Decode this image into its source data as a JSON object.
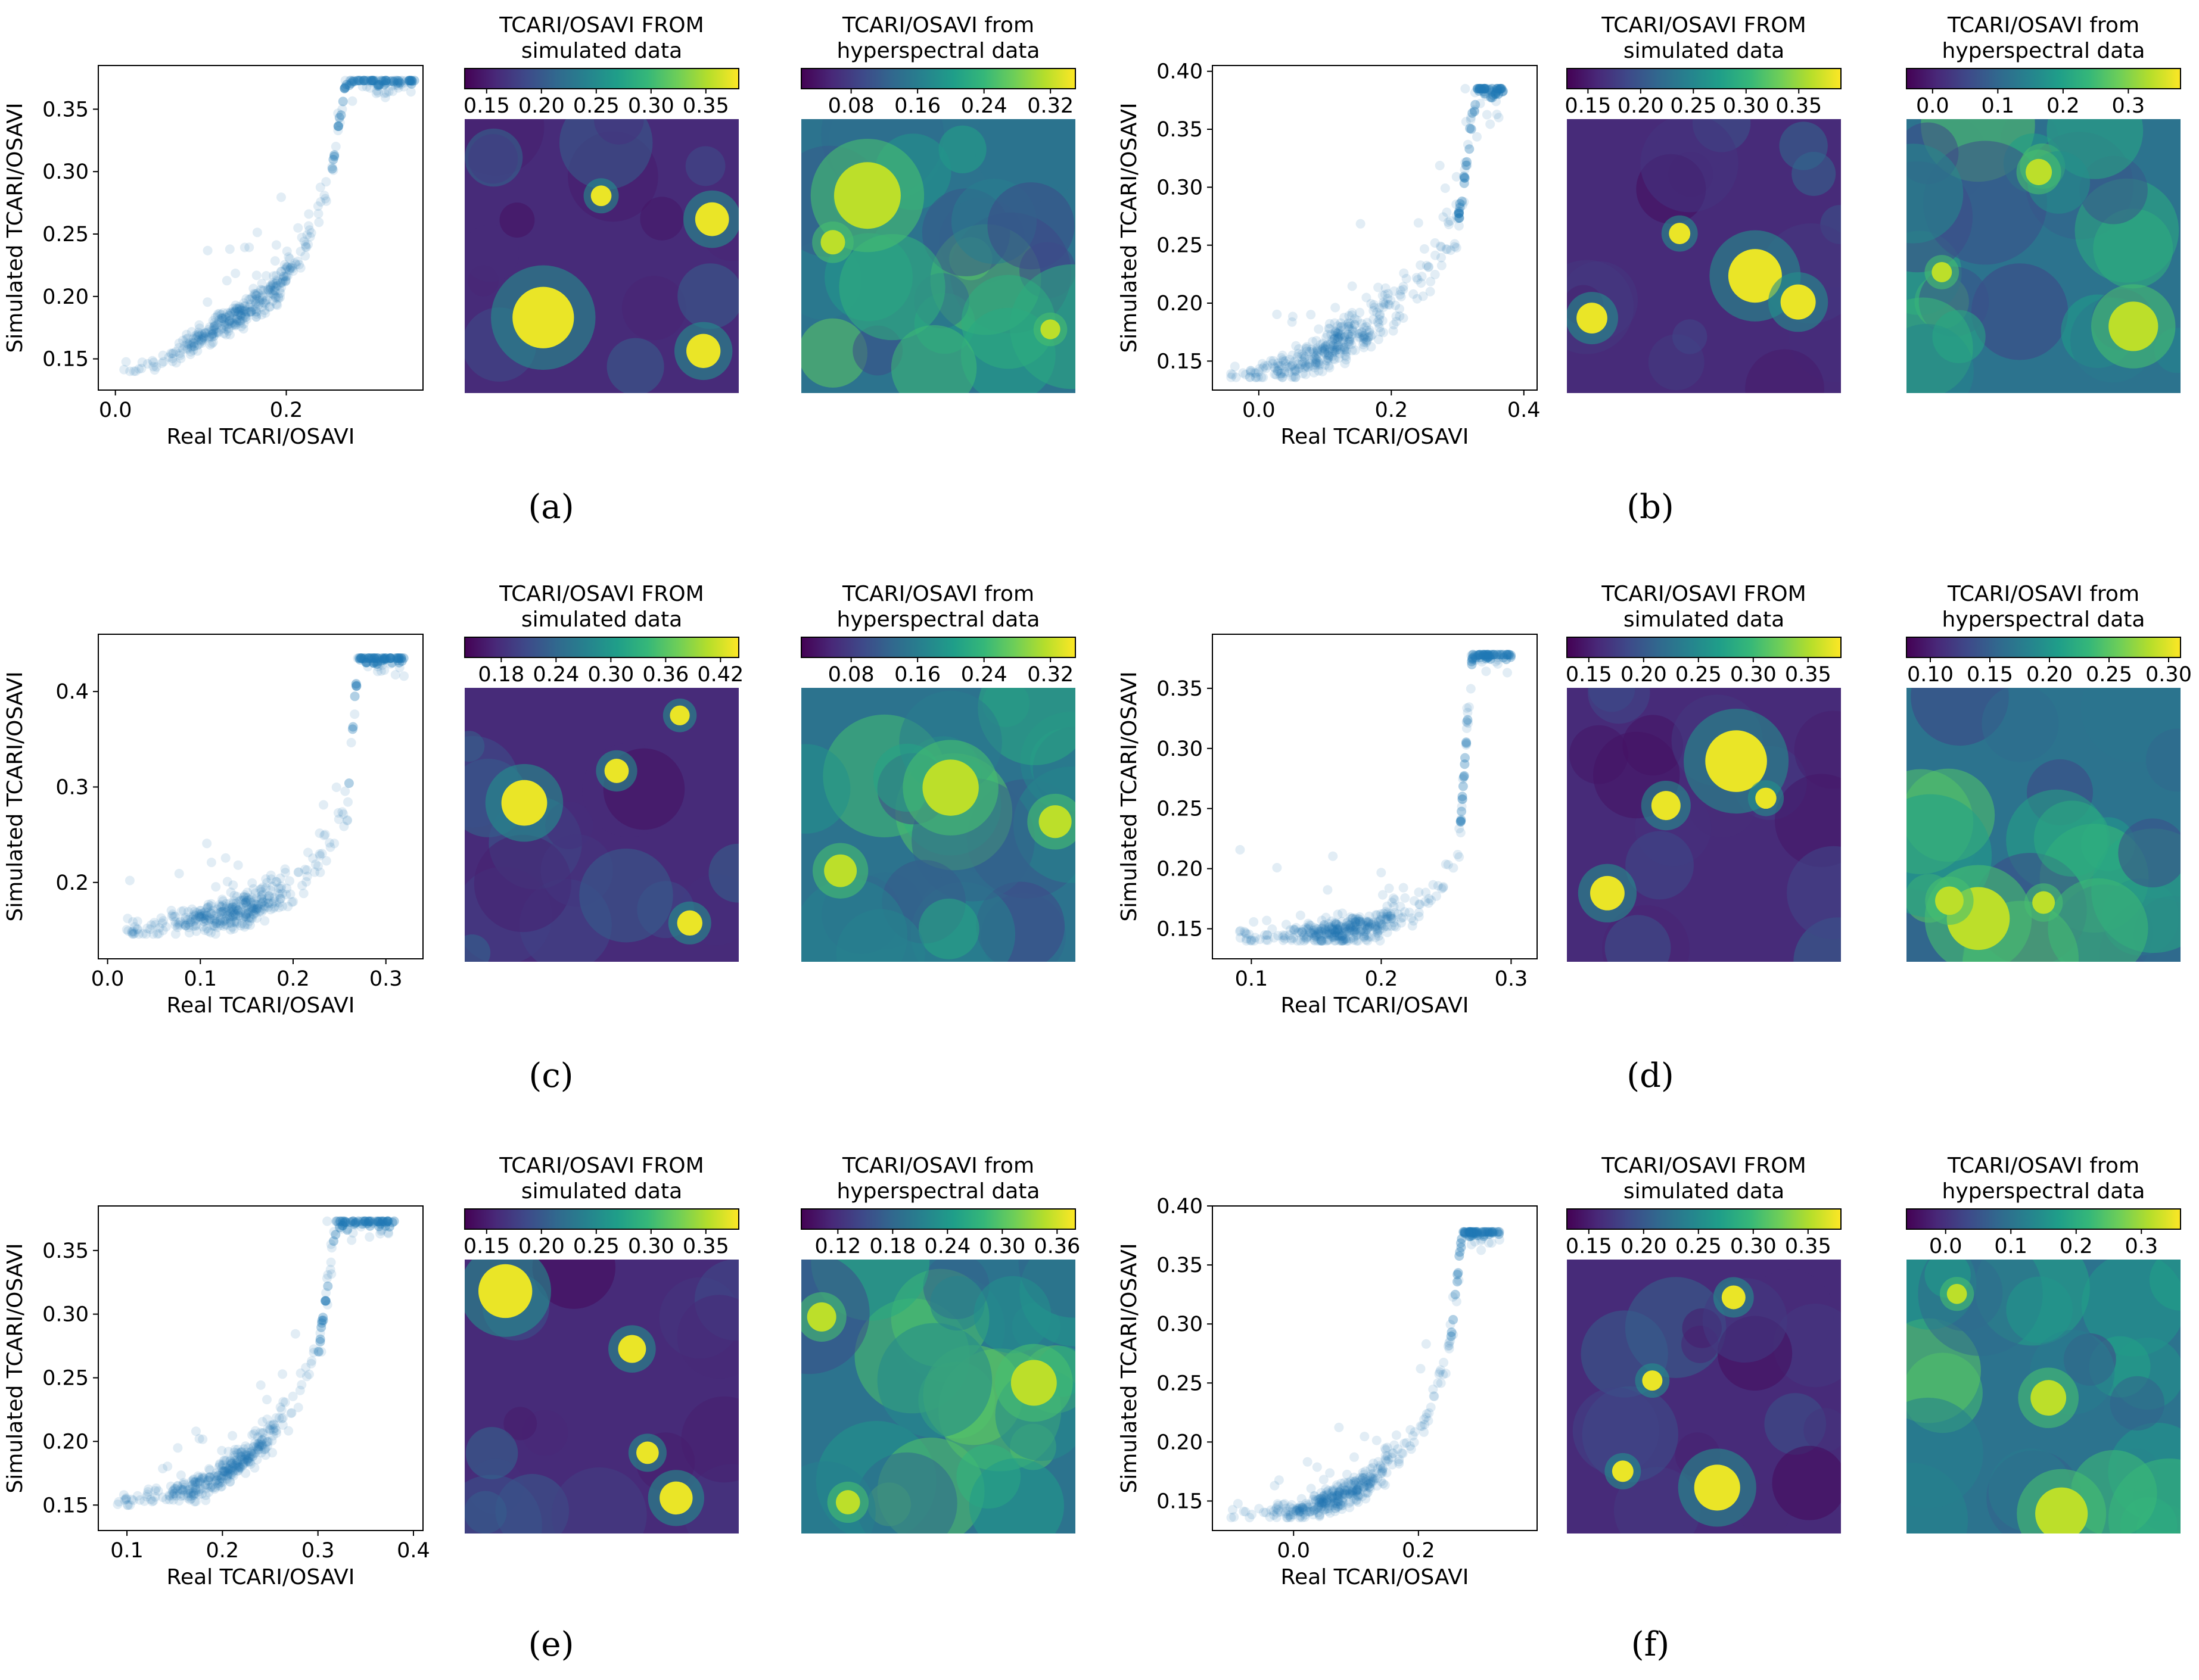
{
  "chart_data": [
    {
      "panel": "a",
      "caption": "(a)",
      "scatter": {
        "type": "scatter",
        "xlabel": "Real TCARI/OSAVI",
        "ylabel": "Simulated TCARI/OSAVI",
        "xlim": [
          -0.02,
          0.36
        ],
        "ylim": [
          0.125,
          0.385
        ],
        "xticks": [
          "0.0",
          "0.2"
        ],
        "xtick_values": [
          0.0,
          0.2
        ],
        "yticks": [
          "0.15",
          "0.20",
          "0.25",
          "0.30",
          "0.35"
        ],
        "ytick_values": [
          0.15,
          0.2,
          0.25,
          0.3,
          0.35
        ],
        "trend": {
          "x": [
            0.01,
            0.06,
            0.12,
            0.18,
            0.22,
            0.25,
            0.27,
            0.35
          ],
          "y": [
            0.138,
            0.15,
            0.175,
            0.2,
            0.235,
            0.29,
            0.373,
            0.373
          ]
        },
        "spread": 0.012,
        "points": 420,
        "seed": 11,
        "color": "#1f77b4"
      },
      "map_simulated": {
        "type": "heatmap",
        "title": [
          "TCARI/OSAVI FROM",
          "simulated data"
        ],
        "colorbar_ticks": [
          "0.15",
          "0.20",
          "0.25",
          "0.30",
          "0.35"
        ],
        "colorbar_tick_values": [
          0.15,
          0.2,
          0.25,
          0.3,
          0.35
        ],
        "colorbar_range": [
          0.13,
          0.38
        ],
        "seed": 101
      },
      "map_hyperspectral": {
        "type": "heatmap",
        "title": [
          "TCARI/OSAVI from",
          "hyperspectral data"
        ],
        "colorbar_ticks": [
          "0.08",
          "0.16",
          "0.24",
          "0.32"
        ],
        "colorbar_tick_values": [
          0.08,
          0.16,
          0.24,
          0.32
        ],
        "colorbar_range": [
          0.02,
          0.35
        ],
        "seed": 102
      }
    },
    {
      "panel": "b",
      "caption": "(b)",
      "scatter": {
        "type": "scatter",
        "xlabel": "Real TCARI/OSAVI",
        "ylabel": "Simulated TCARI/OSAVI",
        "xlim": [
          -0.07,
          0.42
        ],
        "ylim": [
          0.125,
          0.405
        ],
        "xticks": [
          "0.0",
          "0.2",
          "0.4"
        ],
        "xtick_values": [
          0.0,
          0.2,
          0.4
        ],
        "yticks": [
          "0.15",
          "0.20",
          "0.25",
          "0.30",
          "0.35",
          "0.40"
        ],
        "ytick_values": [
          0.15,
          0.2,
          0.25,
          0.3,
          0.35,
          0.4
        ],
        "trend": {
          "x": [
            -0.05,
            0.05,
            0.12,
            0.2,
            0.26,
            0.3,
            0.33,
            0.37
          ],
          "y": [
            0.138,
            0.145,
            0.165,
            0.195,
            0.23,
            0.27,
            0.385,
            0.385
          ]
        },
        "spread": 0.02,
        "points": 420,
        "seed": 12,
        "color": "#1f77b4"
      },
      "map_simulated": {
        "type": "heatmap",
        "title": [
          "TCARI/OSAVI FROM",
          "simulated data"
        ],
        "colorbar_ticks": [
          "0.15",
          "0.20",
          "0.25",
          "0.30",
          "0.35"
        ],
        "colorbar_tick_values": [
          0.15,
          0.2,
          0.25,
          0.3,
          0.35
        ],
        "colorbar_range": [
          0.13,
          0.39
        ],
        "seed": 201
      },
      "map_hyperspectral": {
        "type": "heatmap",
        "title": [
          "TCARI/OSAVI from",
          "hyperspectral data"
        ],
        "colorbar_ticks": [
          "0.0",
          "0.1",
          "0.2",
          "0.3"
        ],
        "colorbar_tick_values": [
          0.0,
          0.1,
          0.2,
          0.3
        ],
        "colorbar_range": [
          -0.04,
          0.38
        ],
        "seed": 202
      }
    },
    {
      "panel": "c",
      "caption": "(c)",
      "scatter": {
        "type": "scatter",
        "xlabel": "Real TCARI/OSAVI",
        "ylabel": "Simulated TCARI/OSAVI",
        "xlim": [
          -0.01,
          0.34
        ],
        "ylim": [
          0.12,
          0.46
        ],
        "xticks": [
          "0.0",
          "0.1",
          "0.2",
          "0.3"
        ],
        "xtick_values": [
          0.0,
          0.1,
          0.2,
          0.3
        ],
        "yticks": [
          "0.2",
          "0.3",
          "0.4"
        ],
        "ytick_values": [
          0.2,
          0.3,
          0.4
        ],
        "trend": {
          "x": [
            0.02,
            0.08,
            0.15,
            0.2,
            0.24,
            0.26,
            0.27,
            0.32
          ],
          "y": [
            0.148,
            0.158,
            0.17,
            0.195,
            0.24,
            0.3,
            0.435,
            0.435
          ]
        },
        "spread": 0.02,
        "points": 420,
        "seed": 13,
        "color": "#1f77b4"
      },
      "map_simulated": {
        "type": "heatmap",
        "title": [
          "TCARI/OSAVI FROM",
          "simulated data"
        ],
        "colorbar_ticks": [
          "0.18",
          "0.24",
          "0.30",
          "0.36",
          "0.42"
        ],
        "colorbar_tick_values": [
          0.18,
          0.24,
          0.3,
          0.36,
          0.42
        ],
        "colorbar_range": [
          0.14,
          0.44
        ],
        "seed": 301
      },
      "map_hyperspectral": {
        "type": "heatmap",
        "title": [
          "TCARI/OSAVI from",
          "hyperspectral data"
        ],
        "colorbar_ticks": [
          "0.08",
          "0.16",
          "0.24",
          "0.32"
        ],
        "colorbar_tick_values": [
          0.08,
          0.16,
          0.24,
          0.32
        ],
        "colorbar_range": [
          0.02,
          0.35
        ],
        "seed": 302
      }
    },
    {
      "panel": "d",
      "caption": "(d)",
      "scatter": {
        "type": "scatter",
        "xlabel": "Real TCARI/OSAVI",
        "ylabel": "Simulated TCARI/OSAVI",
        "xlim": [
          0.07,
          0.32
        ],
        "ylim": [
          0.125,
          0.395
        ],
        "xticks": [
          "0.1",
          "0.2",
          "0.3"
        ],
        "xtick_values": [
          0.1,
          0.2,
          0.3
        ],
        "yticks": [
          "0.15",
          "0.20",
          "0.25",
          "0.30",
          "0.35"
        ],
        "ytick_values": [
          0.15,
          0.2,
          0.25,
          0.3,
          0.35
        ],
        "trend": {
          "x": [
            0.09,
            0.14,
            0.19,
            0.23,
            0.25,
            0.26,
            0.27,
            0.3
          ],
          "y": [
            0.142,
            0.144,
            0.15,
            0.168,
            0.19,
            0.22,
            0.378,
            0.378
          ]
        },
        "spread": 0.012,
        "points": 420,
        "seed": 14,
        "color": "#1f77b4"
      },
      "map_simulated": {
        "type": "heatmap",
        "title": [
          "TCARI/OSAVI FROM",
          "simulated data"
        ],
        "colorbar_ticks": [
          "0.15",
          "0.20",
          "0.25",
          "0.30",
          "0.35"
        ],
        "colorbar_tick_values": [
          0.15,
          0.2,
          0.25,
          0.3,
          0.35
        ],
        "colorbar_range": [
          0.13,
          0.38
        ],
        "seed": 401
      },
      "map_hyperspectral": {
        "type": "heatmap",
        "title": [
          "TCARI/OSAVI from",
          "hyperspectral data"
        ],
        "colorbar_ticks": [
          "0.10",
          "0.15",
          "0.20",
          "0.25",
          "0.30"
        ],
        "colorbar_tick_values": [
          0.1,
          0.15,
          0.2,
          0.25,
          0.3
        ],
        "colorbar_range": [
          0.08,
          0.31
        ],
        "seed": 402
      }
    },
    {
      "panel": "e",
      "caption": "(e)",
      "scatter": {
        "type": "scatter",
        "xlabel": "Real TCARI/OSAVI",
        "ylabel": "Simulated TCARI/OSAVI",
        "xlim": [
          0.07,
          0.41
        ],
        "ylim": [
          0.13,
          0.385
        ],
        "xticks": [
          "0.1",
          "0.2",
          "0.3",
          "0.4"
        ],
        "xtick_values": [
          0.1,
          0.2,
          0.3,
          0.4
        ],
        "yticks": [
          "0.15",
          "0.20",
          "0.25",
          "0.30",
          "0.35"
        ],
        "ytick_values": [
          0.15,
          0.2,
          0.25,
          0.3,
          0.35
        ],
        "trend": {
          "x": [
            0.09,
            0.13,
            0.18,
            0.23,
            0.27,
            0.3,
            0.32,
            0.38
          ],
          "y": [
            0.152,
            0.155,
            0.165,
            0.19,
            0.225,
            0.27,
            0.373,
            0.373
          ]
        },
        "spread": 0.012,
        "points": 420,
        "seed": 15,
        "color": "#1f77b4"
      },
      "map_simulated": {
        "type": "heatmap",
        "title": [
          "TCARI/OSAVI FROM",
          "simulated data"
        ],
        "colorbar_ticks": [
          "0.15",
          "0.20",
          "0.25",
          "0.30",
          "0.35"
        ],
        "colorbar_tick_values": [
          0.15,
          0.2,
          0.25,
          0.3,
          0.35
        ],
        "colorbar_range": [
          0.13,
          0.38
        ],
        "seed": 501
      },
      "map_hyperspectral": {
        "type": "heatmap",
        "title": [
          "TCARI/OSAVI from",
          "hyperspectral data"
        ],
        "colorbar_ticks": [
          "0.12",
          "0.18",
          "0.24",
          "0.30",
          "0.36"
        ],
        "colorbar_tick_values": [
          0.12,
          0.18,
          0.24,
          0.3,
          0.36
        ],
        "colorbar_range": [
          0.08,
          0.38
        ],
        "seed": 502
      }
    },
    {
      "panel": "f",
      "caption": "(f)",
      "scatter": {
        "type": "scatter",
        "xlabel": "Real TCARI/OSAVI",
        "ylabel": "Simulated TCARI/OSAVI",
        "xlim": [
          -0.13,
          0.39
        ],
        "ylim": [
          0.125,
          0.4
        ],
        "xticks": [
          "0.0",
          "0.2"
        ],
        "xtick_values": [
          0.0,
          0.2
        ],
        "yticks": [
          "0.15",
          "0.20",
          "0.25",
          "0.30",
          "0.35",
          "0.40"
        ],
        "ytick_values": [
          0.15,
          0.2,
          0.25,
          0.3,
          0.35,
          0.4
        ],
        "trend": {
          "x": [
            -0.1,
            0.02,
            0.1,
            0.17,
            0.22,
            0.25,
            0.27,
            0.33
          ],
          "y": [
            0.138,
            0.142,
            0.16,
            0.19,
            0.23,
            0.28,
            0.378,
            0.378
          ]
        },
        "spread": 0.012,
        "points": 420,
        "seed": 16,
        "color": "#1f77b4"
      },
      "map_simulated": {
        "type": "heatmap",
        "title": [
          "TCARI/OSAVI FROM",
          "simulated data"
        ],
        "colorbar_ticks": [
          "0.15",
          "0.20",
          "0.25",
          "0.30",
          "0.35"
        ],
        "colorbar_tick_values": [
          0.15,
          0.2,
          0.25,
          0.3,
          0.35
        ],
        "colorbar_range": [
          0.13,
          0.38
        ],
        "seed": 601
      },
      "map_hyperspectral": {
        "type": "heatmap",
        "title": [
          "TCARI/OSAVI from",
          "hyperspectral data"
        ],
        "colorbar_ticks": [
          "0.0",
          "0.1",
          "0.2",
          "0.3"
        ],
        "colorbar_tick_values": [
          0.0,
          0.1,
          0.2,
          0.3
        ],
        "colorbar_range": [
          -0.06,
          0.36
        ],
        "seed": 602
      }
    }
  ],
  "colors": {
    "scatter_point": "#1f77b4",
    "viridis": [
      "#440154",
      "#482878",
      "#3e4989",
      "#31688e",
      "#26828e",
      "#1f9e89",
      "#35b779",
      "#6ece58",
      "#b5de2b",
      "#fde725"
    ]
  }
}
